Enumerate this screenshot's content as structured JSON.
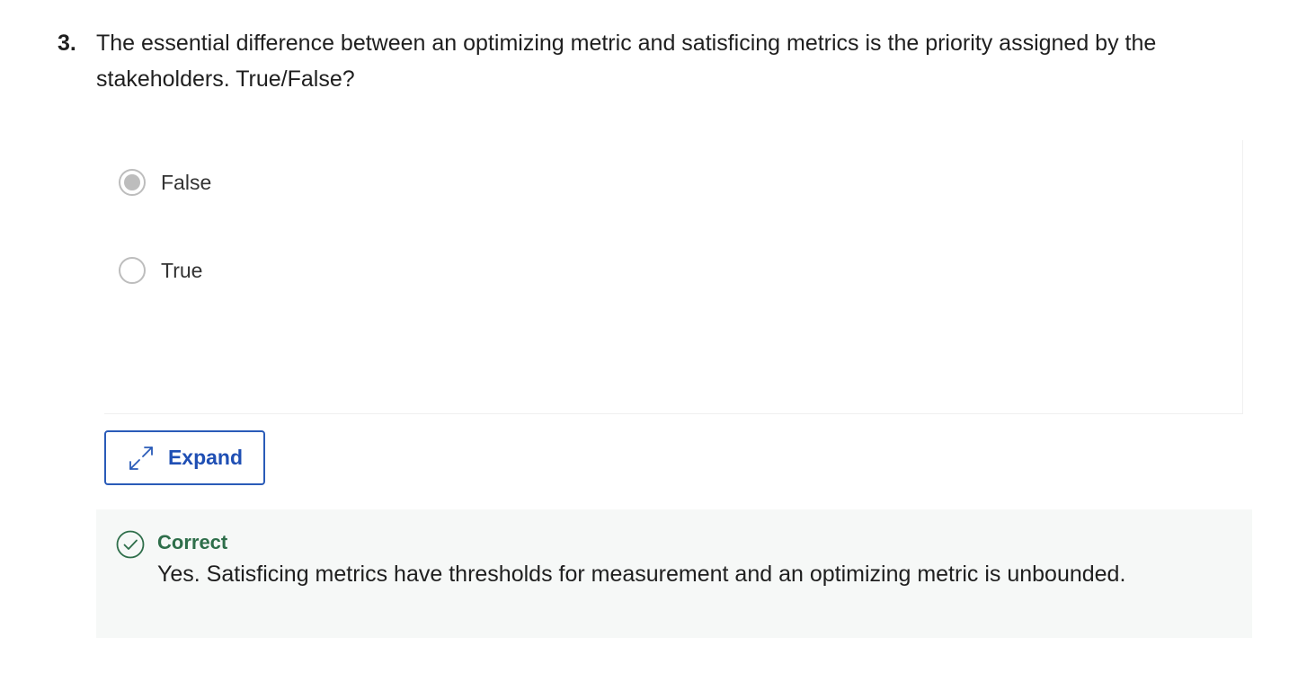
{
  "question": {
    "number": "3.",
    "text": "The essential difference between an optimizing metric and satisficing metrics is the priority assigned by the stakeholders. True/False?"
  },
  "options": [
    {
      "label": "False",
      "selected": true
    },
    {
      "label": "True",
      "selected": false
    }
  ],
  "expand": {
    "label": "Expand",
    "icon": "expand-arrows-icon",
    "color": "#1f4fb4"
  },
  "feedback": {
    "status": "Correct",
    "message": "Yes. Satisficing metrics have thresholds for measurement and an optimizing metric is unbounded.",
    "icon": "check-circle-icon",
    "color": "#2e6e4a"
  }
}
